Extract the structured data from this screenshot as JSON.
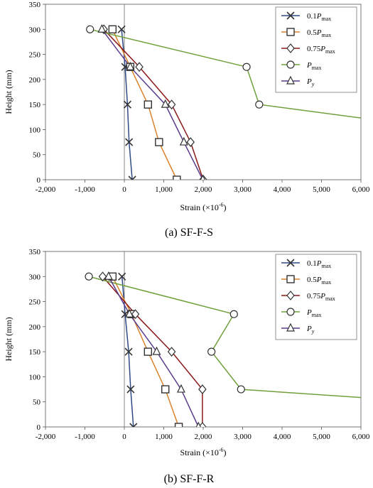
{
  "chart_data": [
    {
      "type": "line",
      "caption": "(a) SF-F-S",
      "xlabel": "Strain (×10⁻⁶)",
      "xlabel_main": "Strain (×10",
      "xlabel_exp": "-6",
      "xlabel_close": ")",
      "ylabel": "Height (mm)",
      "xlim": [
        -2000,
        6000
      ],
      "ylim": [
        0,
        350
      ],
      "xticks": [
        -2000,
        -1000,
        0,
        1000,
        2000,
        3000,
        4000,
        5000,
        6000
      ],
      "xtick_labels": [
        "-2,000",
        "-1,000",
        "0",
        "1,000",
        "2,000",
        "3,000",
        "4,000",
        "5,000",
        "6,000"
      ],
      "yticks": [
        0,
        50,
        100,
        150,
        200,
        250,
        300,
        350
      ],
      "ytick_labels": [
        "0",
        "50",
        "100",
        "150",
        "200",
        "250",
        "300",
        "350"
      ],
      "grid": false,
      "legend": "top-right",
      "series": [
        {
          "name": "0.1Pmax",
          "legend_main": "0.1P",
          "legend_sub": "max",
          "color": "#2e4a87",
          "marker": "x",
          "x": [
            200,
            120,
            80,
            20,
            -70
          ],
          "y": [
            0,
            75,
            150,
            225,
            300
          ]
        },
        {
          "name": "0.5Pmax",
          "legend_main": "0.5P",
          "legend_sub": "max",
          "color": "#d9822b",
          "marker": "square",
          "x": [
            1330,
            880,
            600,
            150,
            -300
          ],
          "y": [
            0,
            75,
            150,
            225,
            300
          ]
        },
        {
          "name": "0.75Pmax",
          "legend_main": "0.75P",
          "legend_sub": "max",
          "color": "#8b1a1a",
          "marker": "diamond",
          "x": [
            2000,
            1680,
            1200,
            380,
            -520
          ],
          "y": [
            0,
            75,
            150,
            225,
            300
          ]
        },
        {
          "name": "Pmax",
          "legend_main": "P",
          "legend_sub": "max",
          "color": "#70a03c",
          "marker": "circle",
          "x": [
            6300,
            3420,
            3100,
            -870
          ],
          "y": [
            120,
            150,
            225,
            300
          ]
        },
        {
          "name": "Py",
          "legend_main": "P",
          "legend_sub": "y",
          "color": "#5b3c8c",
          "marker": "triangle",
          "x": [
            1990,
            1510,
            1040,
            150,
            -570
          ],
          "y": [
            0,
            75,
            150,
            225,
            300
          ]
        }
      ]
    },
    {
      "type": "line",
      "caption": "(b) SF-F-R",
      "xlabel": "Strain (×10⁻⁶)",
      "xlabel_main": "Strain (×10",
      "xlabel_exp": "-6",
      "xlabel_close": ")",
      "ylabel": "Height (mm)",
      "xlim": [
        -2000,
        6000
      ],
      "ylim": [
        0,
        350
      ],
      "xticks": [
        -2000,
        -1000,
        0,
        1000,
        2000,
        3000,
        4000,
        5000,
        6000
      ],
      "xtick_labels": [
        "-2,000",
        "-1,000",
        "0",
        "1,000",
        "2,000",
        "3,000",
        "4,000",
        "5,000",
        "6,000"
      ],
      "yticks": [
        0,
        50,
        100,
        150,
        200,
        250,
        300,
        350
      ],
      "ytick_labels": [
        "0",
        "50",
        "100",
        "150",
        "200",
        "250",
        "300",
        "350"
      ],
      "grid": false,
      "legend": "top-right",
      "series": [
        {
          "name": "0.1Pmax",
          "legend_main": "0.1P",
          "legend_sub": "max",
          "color": "#2e4a87",
          "marker": "x",
          "x": [
            230,
            160,
            110,
            20,
            -60
          ],
          "y": [
            0,
            75,
            150,
            225,
            300
          ]
        },
        {
          "name": "0.5Pmax",
          "legend_main": "0.5P",
          "legend_sub": "max",
          "color": "#d9822b",
          "marker": "square",
          "x": [
            1380,
            1040,
            600,
            180,
            -300
          ],
          "y": [
            0,
            75,
            150,
            225,
            300
          ]
        },
        {
          "name": "0.75Pmax",
          "legend_main": "0.75P",
          "legend_sub": "max",
          "color": "#8b1a1a",
          "marker": "diamond",
          "x": [
            1980,
            1980,
            1200,
            280,
            -550
          ],
          "y": [
            0,
            75,
            150,
            225,
            300
          ]
        },
        {
          "name": "Pmax",
          "legend_main": "P",
          "legend_sub": "max",
          "color": "#70a03c",
          "marker": "circle",
          "x": [
            6300,
            2960,
            2210,
            2780,
            -900
          ],
          "y": [
            57,
            75,
            150,
            225,
            300
          ]
        },
        {
          "name": "Py",
          "legend_main": "P",
          "legend_sub": "y",
          "color": "#5b3c8c",
          "marker": "triangle",
          "x": [
            1880,
            1440,
            820,
            130,
            -400
          ],
          "y": [
            0,
            75,
            150,
            225,
            300
          ]
        }
      ]
    }
  ]
}
